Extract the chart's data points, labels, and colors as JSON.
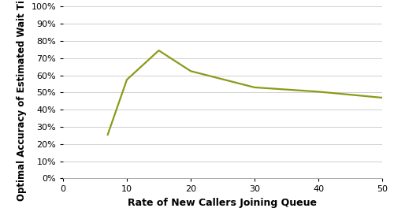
{
  "x": [
    7,
    10,
    15,
    20,
    30,
    40,
    50
  ],
  "y": [
    0.255,
    0.575,
    0.745,
    0.625,
    0.53,
    0.505,
    0.47
  ],
  "line_color": "#8c9a1a",
  "xlabel": "Rate of New Callers Joining Queue",
  "ylabel": "Optimal Accuracy of Estimated Wait Time",
  "xlim": [
    0,
    50
  ],
  "ylim": [
    0,
    1.0
  ],
  "xticks": [
    0,
    10,
    20,
    30,
    40,
    50
  ],
  "yticks": [
    0.0,
    0.1,
    0.2,
    0.3,
    0.4,
    0.5,
    0.6,
    0.7,
    0.8,
    0.9,
    1.0
  ],
  "background_color": "#ffffff",
  "grid_color": "#d0d0d0",
  "xlabel_fontsize": 9,
  "ylabel_fontsize": 8.5,
  "tick_fontsize": 8,
  "line_width": 1.6
}
